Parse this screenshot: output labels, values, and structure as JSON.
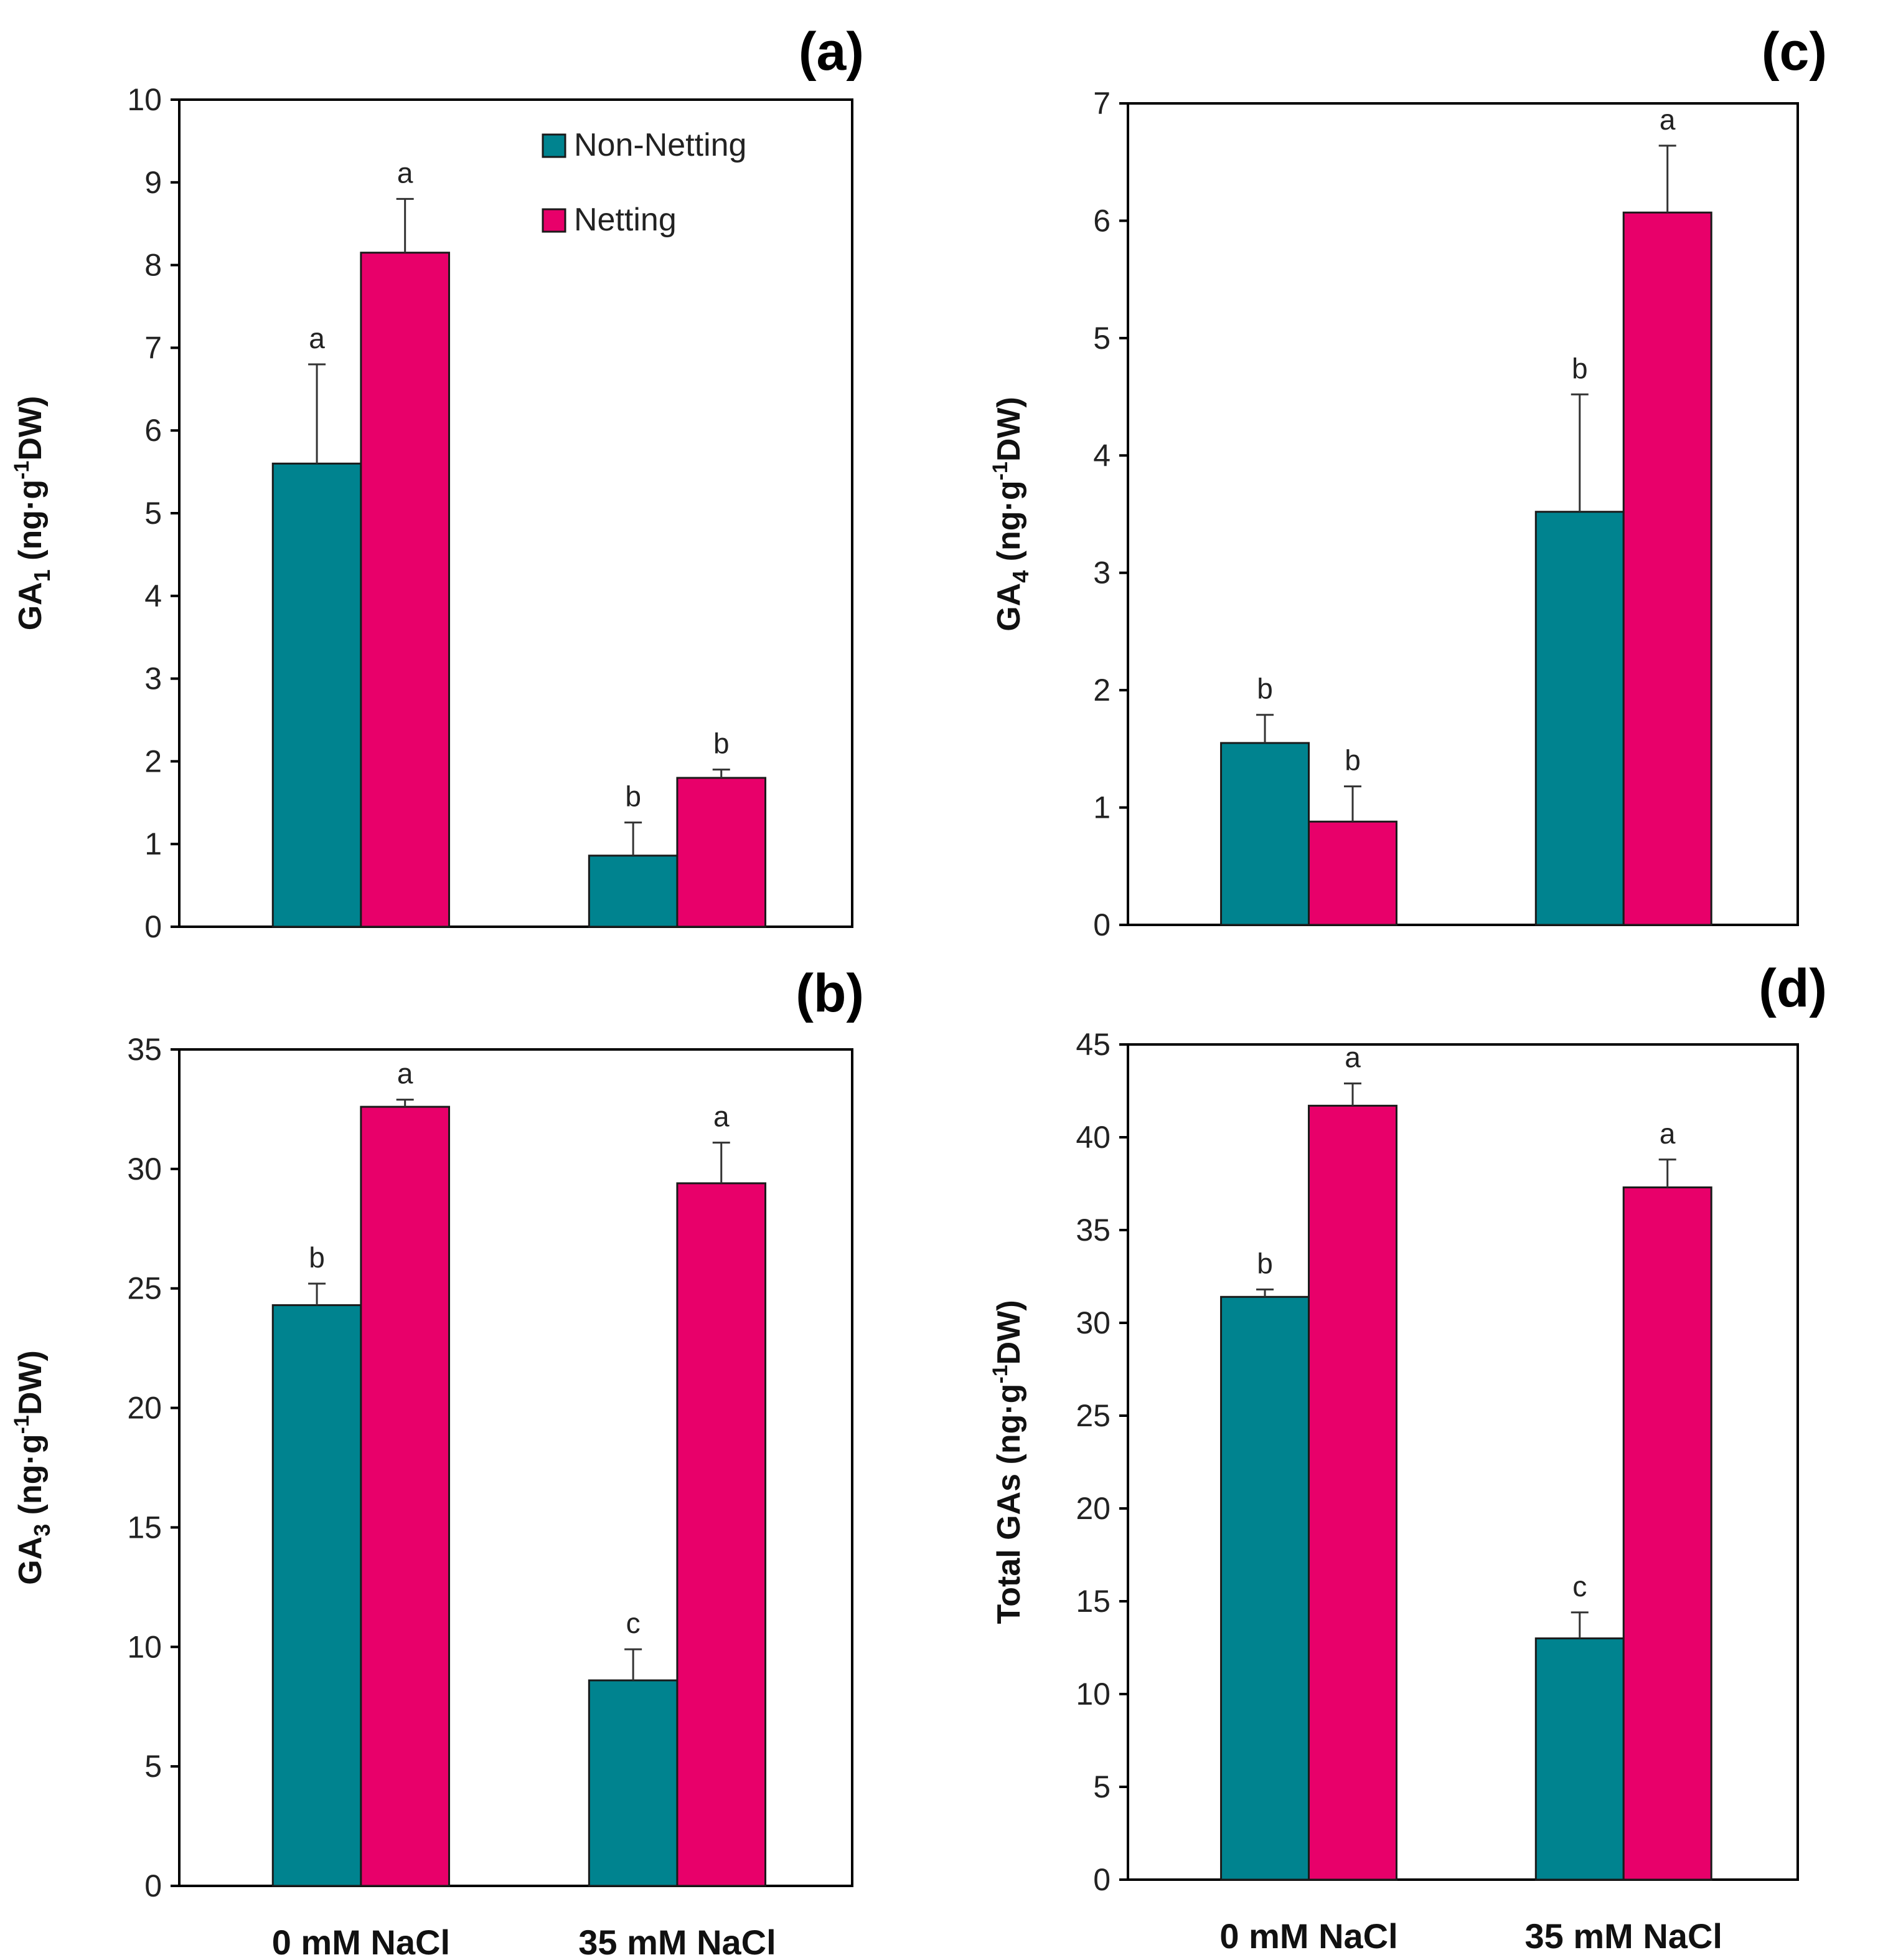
{
  "colors": {
    "non_netting": "#00838f",
    "netting": "#e8006a"
  },
  "legend": {
    "items": [
      "Non-Netting",
      "Netting"
    ]
  },
  "chart_data": [
    {
      "id": "a",
      "panel_label": "(a)",
      "type": "bar",
      "categories": [
        "0 mM NaCl",
        "35 mM NaCl"
      ],
      "ylabel": {
        "main": "GA",
        "sub": "1",
        "unit": " (ng·g",
        "sup": "-1",
        "tail": "DW)"
      },
      "ylim": [
        0,
        10
      ],
      "ticks": [
        0,
        1,
        2,
        3,
        4,
        5,
        6,
        7,
        8,
        9,
        10
      ],
      "series": [
        {
          "name": "Non-Netting",
          "values": [
            5.6,
            0.86
          ],
          "errors": [
            1.2,
            0.4
          ],
          "labels": [
            "a",
            "b"
          ]
        },
        {
          "name": "Netting",
          "values": [
            8.15,
            1.8
          ],
          "errors": [
            0.65,
            0.1
          ],
          "labels": [
            "a",
            "b"
          ]
        }
      ]
    },
    {
      "id": "b",
      "panel_label": "(b)",
      "type": "bar",
      "categories": [
        "0 mM NaCl",
        "35 mM NaCl"
      ],
      "ylabel": {
        "main": "GA",
        "sub": "3",
        "unit": " (ng·g",
        "sup": "-1",
        "tail": "DW)"
      },
      "ylim": [
        0,
        35
      ],
      "ticks": [
        0,
        5,
        10,
        15,
        20,
        25,
        30,
        35
      ],
      "series": [
        {
          "name": "Non-Netting",
          "values": [
            24.3,
            8.6
          ],
          "errors": [
            0.9,
            1.3
          ],
          "labels": [
            "b",
            "c"
          ]
        },
        {
          "name": "Netting",
          "values": [
            32.6,
            29.4
          ],
          "errors": [
            0.3,
            1.7
          ],
          "labels": [
            "a",
            "a"
          ]
        }
      ]
    },
    {
      "id": "c",
      "panel_label": "(c)",
      "type": "bar",
      "categories": [
        "0 mM NaCl",
        "35 mM NaCl"
      ],
      "ylabel": {
        "main": "GA",
        "sub": "4",
        "unit": " (ng·g",
        "sup": "-1",
        "tail": "DW)"
      },
      "ylim": [
        0,
        7
      ],
      "ticks": [
        0,
        1,
        2,
        3,
        4,
        5,
        6,
        7
      ],
      "series": [
        {
          "name": "Non-Netting",
          "values": [
            1.55,
            3.52
          ],
          "errors": [
            0.24,
            1.0
          ],
          "labels": [
            "b",
            "b"
          ]
        },
        {
          "name": "Netting",
          "values": [
            0.88,
            6.07
          ],
          "errors": [
            0.3,
            0.57
          ],
          "labels": [
            "b",
            "a"
          ]
        }
      ]
    },
    {
      "id": "d",
      "panel_label": "(d)",
      "type": "bar",
      "categories": [
        "0 mM NaCl",
        "35 mM NaCl"
      ],
      "ylabel": {
        "main": "Total GAs",
        "sub": "",
        "unit": " (ng·g",
        "sup": "-1",
        "tail": "DW)"
      },
      "ylim": [
        0,
        45
      ],
      "ticks": [
        0,
        5,
        10,
        15,
        20,
        25,
        30,
        35,
        40,
        45
      ],
      "series": [
        {
          "name": "Non-Netting",
          "values": [
            31.4,
            13.0
          ],
          "errors": [
            0.4,
            1.4
          ],
          "labels": [
            "b",
            "c"
          ]
        },
        {
          "name": "Netting",
          "values": [
            41.7,
            37.3
          ],
          "errors": [
            1.2,
            1.5
          ],
          "labels": [
            "a",
            "a"
          ]
        }
      ]
    }
  ]
}
